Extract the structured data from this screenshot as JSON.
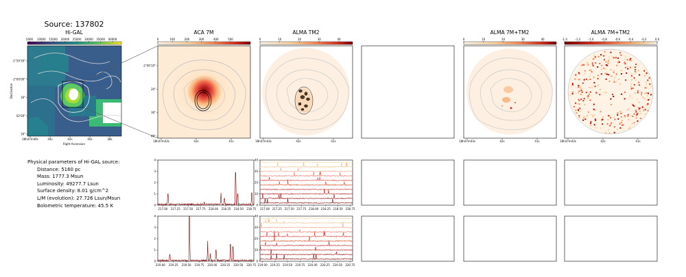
{
  "title": "Source: 137802",
  "panels": {
    "higal": {
      "title": "Hi-GAL",
      "cbar_ticks": [
        "5000",
        "10000",
        "15000",
        "20000",
        "25000",
        "30000",
        "35000",
        "40000"
      ],
      "yticks": [
        "-1°59'30\"",
        "-2°00'00\"",
        "30\"",
        "02'00\"",
        "30\""
      ],
      "xticks": [
        "18h47m46s",
        "44s",
        "42s",
        "40s",
        "38s"
      ],
      "xlabel": "Right Ascension",
      "ylabel": "Declination"
    },
    "aca7m": {
      "title": "ACA 7M",
      "cbar_ticks": [
        "0",
        "100",
        "200",
        "300",
        "400",
        "500"
      ],
      "yticks": [
        "-2°00'10\"",
        "20\"",
        "30\"",
        "40\""
      ],
      "xticks": [
        "18h47m43s",
        "42s",
        "41s"
      ]
    },
    "almatm2": {
      "title": "ALMA TM2",
      "cbar_ticks": [
        "0",
        "10",
        "20",
        "30",
        "40"
      ],
      "xticks": [
        "18h47m43s",
        "42s",
        "41s"
      ]
    },
    "alma7mtm2a": {
      "title": "ALMA 7M+TM2",
      "cbar_ticks": [
        "0",
        "10",
        "20",
        "30",
        "40"
      ],
      "xticks": [
        "18h47m43s",
        "42s",
        "41s"
      ]
    },
    "alma7mtm2b": {
      "title": "ALMA 7M+TM2",
      "cbar_ticks": [
        "-1.4",
        "-1.2",
        "-1.0",
        "-0.8",
        "-0.6",
        "-0.4",
        "-0.2",
        "0.0"
      ],
      "xticks": [
        "18h47m43s",
        "42s",
        "41s"
      ]
    }
  },
  "info": {
    "header": "Physical parameters of Hi-GAL source:",
    "lines": [
      "Distance: 5160 pc",
      "Mass: 1777.3 Msun",
      "Luminosity: 49277.7 Lsun",
      "Surface density: 8.01 g/cm^2",
      "L/M (evolution): 27.726 Lsun/Msun",
      "Bolometric temperature: 45.5 K"
    ]
  },
  "chart_data": [
    {
      "type": "line",
      "name": "aca-spectrum-1",
      "x_range": [
        216.9,
        218.8
      ],
      "ylim": [
        0,
        4
      ],
      "xticks": [
        217.0,
        217.25,
        217.5,
        217.75,
        218.0,
        218.25,
        218.5,
        218.75
      ],
      "xtick_labels": [
        "217.00",
        "217.25",
        "217.50",
        "217.75",
        "218.00",
        "218.25",
        "218.50",
        "218.75"
      ],
      "yticks": [
        0,
        1,
        2,
        3,
        4
      ],
      "peaks": [
        {
          "x": 217.1,
          "y": 1.0
        },
        {
          "x": 217.82,
          "y": 0.3
        },
        {
          "x": 218.15,
          "y": 1.1
        },
        {
          "x": 218.22,
          "y": 0.6
        },
        {
          "x": 218.44,
          "y": 2.9
        },
        {
          "x": 218.48,
          "y": 1.0
        },
        {
          "x": 218.76,
          "y": 1.1
        }
      ],
      "color": "#8b0000"
    },
    {
      "type": "line",
      "name": "tm2-spectra-1",
      "x_range": [
        216.9,
        218.8
      ],
      "ylim": [
        0,
        40
      ],
      "xticks": [
        217.0,
        217.25,
        217.5,
        217.75,
        218.0,
        218.25,
        218.5,
        218.75
      ],
      "xtick_labels": [
        "217.00",
        "217.25",
        "217.50",
        "217.75",
        "218.00",
        "218.25",
        "218.50",
        "218.75"
      ],
      "yticks": [
        0,
        10,
        20,
        30,
        40
      ],
      "offsets": [
        2,
        6,
        10,
        14,
        18,
        22,
        26,
        30,
        34,
        38
      ],
      "colors": [
        "#7f0000",
        "#9b0d0d",
        "#b71c1c",
        "#c62828",
        "#d84315",
        "#e53935",
        "#ef6c5a",
        "#f4a582",
        "#f7c08a",
        "#fdd49e"
      ]
    },
    {
      "type": "line",
      "name": "aca-spectrum-2",
      "x_range": [
        218.95,
        220.8
      ],
      "ylim": [
        0,
        4
      ],
      "xticks": [
        219.0,
        219.25,
        219.5,
        219.75,
        220.0,
        220.25,
        220.5,
        220.75
      ],
      "xtick_labels": [
        "219.00",
        "219.25",
        "219.50",
        "219.75",
        "220.00",
        "220.25",
        "220.50",
        "220.75"
      ],
      "yticks": [
        0,
        1,
        2,
        3,
        4
      ],
      "peaks": [
        {
          "x": 219.18,
          "y": 0.6
        },
        {
          "x": 219.56,
          "y": 4.0
        },
        {
          "x": 219.91,
          "y": 1.8
        },
        {
          "x": 219.96,
          "y": 0.7
        },
        {
          "x": 220.07,
          "y": 1.0
        },
        {
          "x": 220.35,
          "y": 1.5
        },
        {
          "x": 220.4,
          "y": 1.3
        }
      ],
      "color": "#8b0000"
    },
    {
      "type": "line",
      "name": "tm2-spectra-2",
      "x_range": [
        218.95,
        220.8
      ],
      "ylim": [
        0,
        40
      ],
      "xticks": [
        219.0,
        219.25,
        219.5,
        219.75,
        220.0,
        220.25,
        220.5,
        220.75
      ],
      "xtick_labels": [
        "219.00",
        "219.25",
        "219.50",
        "219.75",
        "220.00",
        "220.25",
        "220.50",
        "220.75"
      ],
      "yticks": [
        0,
        10,
        20,
        30,
        40
      ],
      "offsets": [
        2,
        6,
        10,
        14,
        18,
        22,
        26,
        30,
        34,
        38
      ],
      "colors": [
        "#7f0000",
        "#9b0d0d",
        "#b71c1c",
        "#c62828",
        "#d84315",
        "#e53935",
        "#ef6c5a",
        "#f4a582",
        "#f7c08a",
        "#fdd49e"
      ]
    }
  ]
}
